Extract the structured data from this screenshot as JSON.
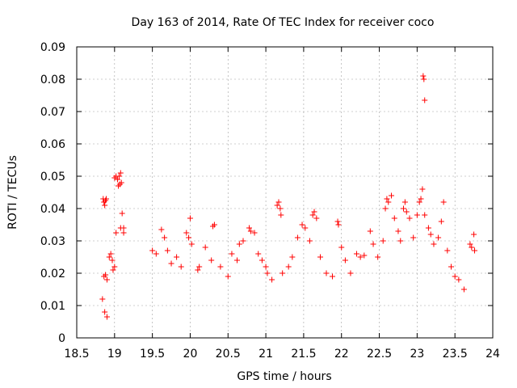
{
  "chart_data": {
    "type": "scatter",
    "title": "Day 163 of 2014, Rate Of TEC Index for receiver coco",
    "xlabel": "GPS time / hours",
    "ylabel": "ROTI / TECUs",
    "xlim": [
      18.5,
      24
    ],
    "ylim": [
      0,
      0.09
    ],
    "x_ticks": [
      "18.5",
      "19",
      "19.5",
      "20",
      "20.5",
      "21",
      "21.5",
      "22",
      "22.5",
      "23",
      "23.5",
      "24"
    ],
    "y_ticks": [
      "0",
      "0.01",
      "0.02",
      "0.03",
      "0.04",
      "0.05",
      "0.06",
      "0.07",
      "0.08",
      "0.09"
    ],
    "grid": true,
    "marker": "+",
    "color": "#ff0000",
    "series": [
      {
        "name": "ROTI",
        "points": [
          [
            18.85,
            0.043
          ],
          [
            18.86,
            0.042
          ],
          [
            18.88,
            0.0425
          ],
          [
            18.87,
            0.041
          ],
          [
            18.89,
            0.043
          ],
          [
            18.86,
            0.019
          ],
          [
            18.88,
            0.0195
          ],
          [
            18.9,
            0.018
          ],
          [
            18.84,
            0.012
          ],
          [
            18.87,
            0.008
          ],
          [
            18.9,
            0.0065
          ],
          [
            18.93,
            0.025
          ],
          [
            18.95,
            0.026
          ],
          [
            18.97,
            0.024
          ],
          [
            18.98,
            0.021
          ],
          [
            19.0,
            0.022
          ],
          [
            19.0,
            0.0495
          ],
          [
            19.02,
            0.05
          ],
          [
            19.04,
            0.049
          ],
          [
            19.06,
            0.05
          ],
          [
            19.08,
            0.051
          ],
          [
            19.05,
            0.047
          ],
          [
            19.07,
            0.0475
          ],
          [
            19.09,
            0.048
          ],
          [
            19.1,
            0.0385
          ],
          [
            19.08,
            0.034
          ],
          [
            19.12,
            0.034
          ],
          [
            19.02,
            0.0325
          ],
          [
            19.12,
            0.0325
          ],
          [
            19.5,
            0.027
          ],
          [
            19.55,
            0.026
          ],
          [
            19.62,
            0.0335
          ],
          [
            19.66,
            0.031
          ],
          [
            19.7,
            0.027
          ],
          [
            19.75,
            0.023
          ],
          [
            19.82,
            0.025
          ],
          [
            19.88,
            0.022
          ],
          [
            19.95,
            0.0325
          ],
          [
            19.98,
            0.031
          ],
          [
            20.0,
            0.037
          ],
          [
            20.02,
            0.029
          ],
          [
            20.1,
            0.021
          ],
          [
            20.12,
            0.022
          ],
          [
            20.2,
            0.028
          ],
          [
            20.28,
            0.024
          ],
          [
            20.3,
            0.0345
          ],
          [
            20.32,
            0.035
          ],
          [
            20.4,
            0.022
          ],
          [
            20.5,
            0.019
          ],
          [
            20.55,
            0.026
          ],
          [
            20.62,
            0.024
          ],
          [
            20.65,
            0.029
          ],
          [
            20.7,
            0.03
          ],
          [
            20.78,
            0.034
          ],
          [
            20.8,
            0.033
          ],
          [
            20.85,
            0.0325
          ],
          [
            20.9,
            0.026
          ],
          [
            20.95,
            0.024
          ],
          [
            21.0,
            0.022
          ],
          [
            21.02,
            0.02
          ],
          [
            21.08,
            0.018
          ],
          [
            21.15,
            0.041
          ],
          [
            21.17,
            0.042
          ],
          [
            21.19,
            0.04
          ],
          [
            21.2,
            0.038
          ],
          [
            21.22,
            0.02
          ],
          [
            21.3,
            0.022
          ],
          [
            21.35,
            0.025
          ],
          [
            21.42,
            0.031
          ],
          [
            21.48,
            0.035
          ],
          [
            21.52,
            0.034
          ],
          [
            21.58,
            0.03
          ],
          [
            21.62,
            0.038
          ],
          [
            21.64,
            0.039
          ],
          [
            21.67,
            0.037
          ],
          [
            21.72,
            0.025
          ],
          [
            21.8,
            0.02
          ],
          [
            21.88,
            0.019
          ],
          [
            21.95,
            0.036
          ],
          [
            21.96,
            0.035
          ],
          [
            22.0,
            0.028
          ],
          [
            22.05,
            0.024
          ],
          [
            22.12,
            0.02
          ],
          [
            22.2,
            0.026
          ],
          [
            22.25,
            0.025
          ],
          [
            22.3,
            0.0255
          ],
          [
            22.38,
            0.033
          ],
          [
            22.42,
            0.029
          ],
          [
            22.48,
            0.025
          ],
          [
            22.55,
            0.03
          ],
          [
            22.58,
            0.04
          ],
          [
            22.6,
            0.043
          ],
          [
            22.62,
            0.042
          ],
          [
            22.66,
            0.044
          ],
          [
            22.7,
            0.037
          ],
          [
            22.75,
            0.033
          ],
          [
            22.78,
            0.03
          ],
          [
            22.82,
            0.04
          ],
          [
            22.84,
            0.042
          ],
          [
            22.86,
            0.039
          ],
          [
            22.9,
            0.037
          ],
          [
            22.95,
            0.031
          ],
          [
            23.0,
            0.038
          ],
          [
            23.03,
            0.042
          ],
          [
            23.05,
            0.043
          ],
          [
            23.07,
            0.046
          ],
          [
            23.08,
            0.081
          ],
          [
            23.09,
            0.08
          ],
          [
            23.1,
            0.0735
          ],
          [
            23.1,
            0.038
          ],
          [
            23.15,
            0.034
          ],
          [
            23.18,
            0.032
          ],
          [
            23.22,
            0.029
          ],
          [
            23.28,
            0.031
          ],
          [
            23.32,
            0.036
          ],
          [
            23.35,
            0.042
          ],
          [
            23.4,
            0.027
          ],
          [
            23.45,
            0.022
          ],
          [
            23.5,
            0.019
          ],
          [
            23.55,
            0.018
          ],
          [
            23.62,
            0.015
          ],
          [
            23.7,
            0.029
          ],
          [
            23.72,
            0.028
          ],
          [
            23.75,
            0.032
          ],
          [
            23.76,
            0.027
          ]
        ]
      }
    ]
  }
}
